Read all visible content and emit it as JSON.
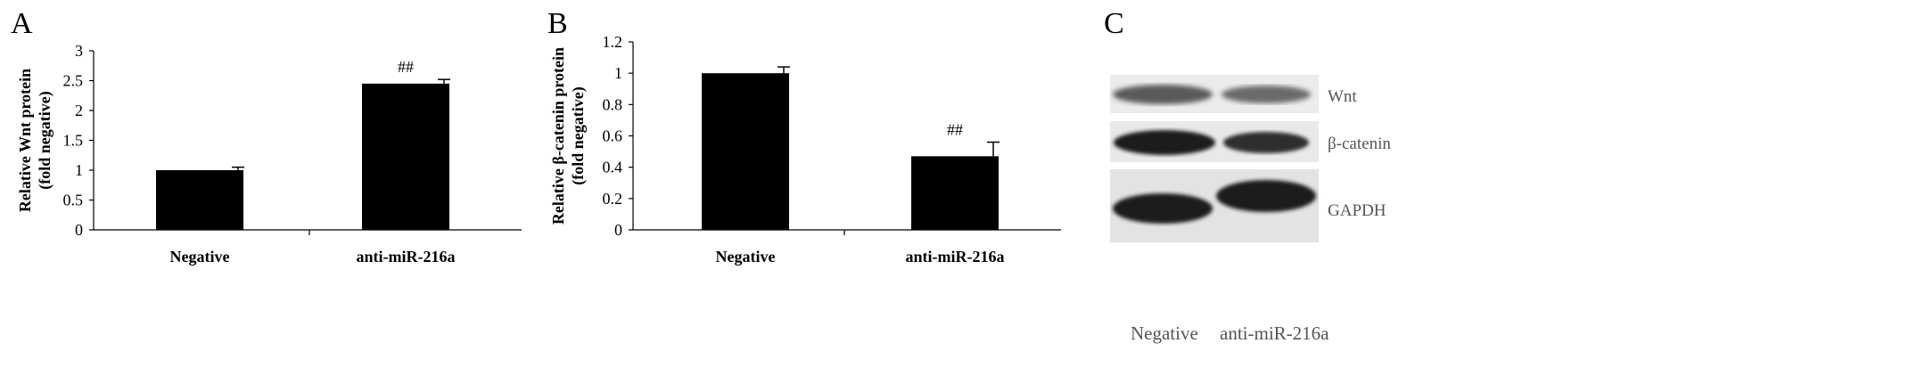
{
  "panels": {
    "a": "A",
    "b": "B",
    "c": "C"
  },
  "chart_data": [
    {
      "type": "bar",
      "panel": "A",
      "categories": [
        "Negative",
        "anti-miR-216a"
      ],
      "values": [
        1.0,
        2.45
      ],
      "errors": [
        0.05,
        0.07
      ],
      "annotations": [
        "",
        "##"
      ],
      "ylabel": "Relative Wnt protein\n(fold negative)",
      "xlabel": "",
      "ylim": [
        0,
        3
      ],
      "yticks": [
        "0",
        "0.5",
        "1",
        "1.5",
        "2",
        "2.5",
        "3"
      ],
      "color": "#000000",
      "grid": false
    },
    {
      "type": "bar",
      "panel": "B",
      "categories": [
        "Negative",
        "anti-miR-216a"
      ],
      "values": [
        1.0,
        0.47
      ],
      "errors": [
        0.04,
        0.09
      ],
      "annotations": [
        "",
        "##"
      ],
      "ylabel": "Relative β-catenin protein\n(fold negative)",
      "xlabel": "",
      "ylim": [
        0,
        1.2
      ],
      "yticks": [
        "0",
        "0.2",
        "0.4",
        "0.6",
        "0.8",
        "1",
        "1.2"
      ],
      "color": "#000000",
      "grid": false
    }
  ],
  "blot": {
    "bands": [
      "Wnt",
      "β-catenin",
      "GAPDH"
    ],
    "lanes": [
      "Negative",
      "anti-miR-216a"
    ]
  }
}
